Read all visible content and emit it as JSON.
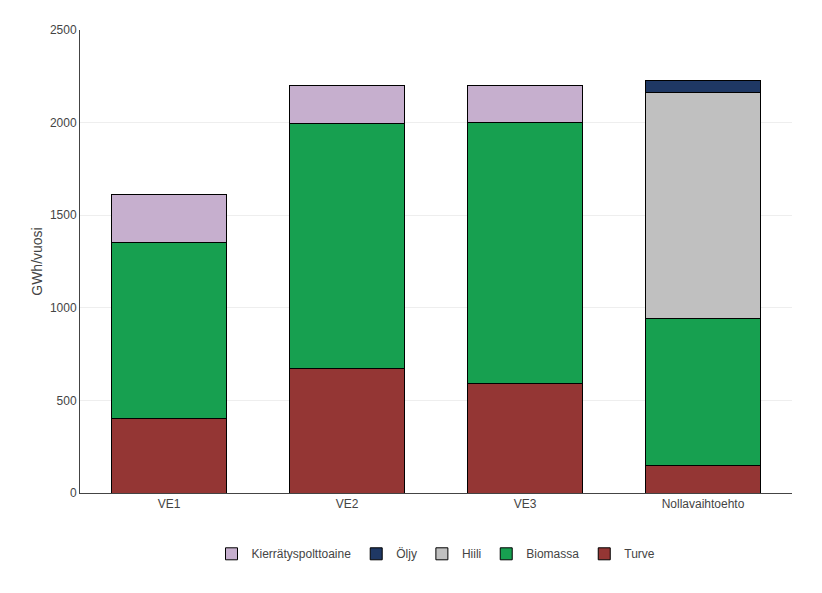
{
  "chart_data": {
    "type": "bar",
    "stacked": true,
    "categories": [
      "VE1",
      "VE2",
      "VE3",
      "Nollavaihtoehto"
    ],
    "series": [
      {
        "name": "Turve",
        "color": "#943634",
        "values": [
          400,
          670,
          590,
          150
        ]
      },
      {
        "name": "Biomassa",
        "color": "#17A050",
        "values": [
          950,
          1325,
          1410,
          790
        ]
      },
      {
        "name": "Hiili",
        "color": "#C0C0C0",
        "values": [
          0,
          0,
          0,
          1225
        ]
      },
      {
        "name": "Öljy",
        "color": "#1F3864",
        "values": [
          0,
          0,
          0,
          60
        ]
      },
      {
        "name": "Kierrätyspolttoaine",
        "color": "#C6AFCE",
        "values": [
          260,
          205,
          200,
          0
        ]
      }
    ],
    "ylabel": "GWh/vuosi",
    "ylim": [
      0,
      2500
    ],
    "yticks": [
      0,
      500,
      1000,
      1500,
      2000,
      2500
    ],
    "grid": true,
    "legend": "bottom"
  }
}
